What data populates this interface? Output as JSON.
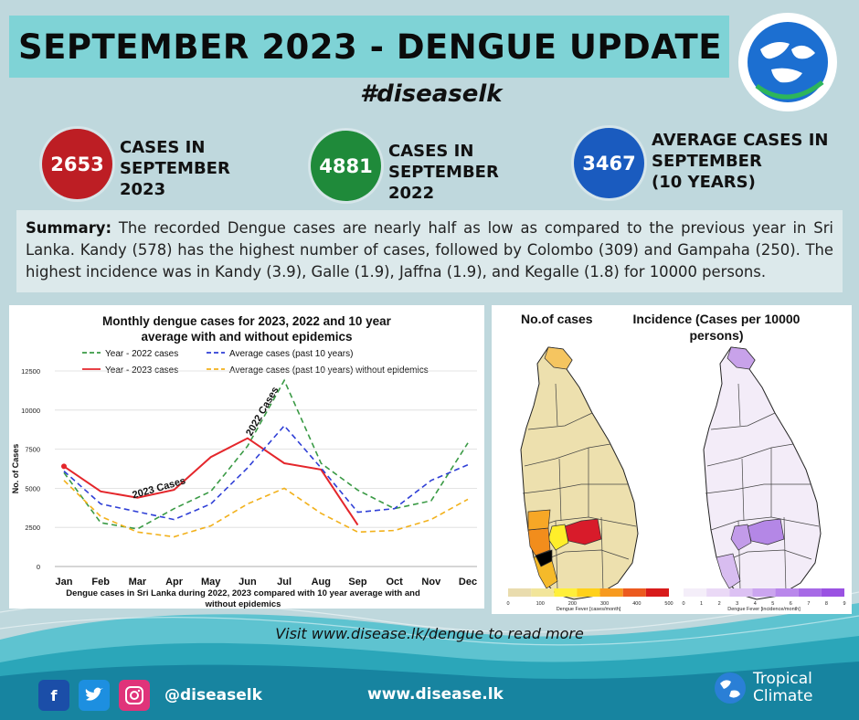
{
  "title": "SEPTEMBER 2023 - DENGUE UPDATE",
  "hashtag": "#diseaselk",
  "stats": [
    {
      "value": "2653",
      "label": "CASES IN\nSEPTEMBER\n2023",
      "color": "#bd1e24"
    },
    {
      "value": "4881",
      "label": "CASES IN\nSEPTEMBER\n2022",
      "color": "#1f8a3a"
    },
    {
      "value": "3467",
      "label": "AVERAGE CASES  IN\nSEPTEMBER\n(10 YEARS)",
      "color": "#1a5bbf"
    }
  ],
  "summary": {
    "lead": "Summary:",
    "text": "  The recorded Dengue cases are nearly half as low as compared to the previous year in Sri Lanka. Kandy (578) has the highest number of cases, followed by Colombo (309) and Gampaha (250). The highest incidence was in Kandy (3.9), Galle (1.9), Jaffna (1.9), and Kegalle (1.8) for 10000 persons."
  },
  "chart_data": [
    {
      "type": "line",
      "title": "Monthly dengue cases for 2023, 2022 and 10 year average with and without epidemics",
      "caption": "Dengue cases in Sri Lanka during 2022, 2023 compared with 10 year average with and without epidemics",
      "ylabel": "No. of Cases",
      "xlabel": "",
      "categories": [
        "Jan",
        "Feb",
        "Mar",
        "Apr",
        "May",
        "Jun",
        "Jul",
        "Aug",
        "Sep",
        "Oct",
        "Nov",
        "Dec"
      ],
      "yticks": [
        0,
        2500,
        5000,
        7500,
        10000,
        12500
      ],
      "ylim": [
        0,
        12500
      ],
      "grid": true,
      "legend": "top",
      "series": [
        {
          "name": "Year - 2022 cases",
          "color": "#3a9a45",
          "dash": "dashed",
          "values": [
            6000,
            2800,
            2400,
            3700,
            4800,
            7700,
            11900,
            6600,
            4881,
            3700,
            4200,
            7900
          ]
        },
        {
          "name": "Year - 2023 cases",
          "color": "#e4262b",
          "dash": "solid",
          "values": [
            6400,
            4800,
            4400,
            4900,
            7000,
            8200,
            6600,
            6200,
            2653,
            null,
            null,
            null
          ]
        },
        {
          "name": "Average cases (past 10 years)",
          "color": "#2f3fd6",
          "dash": "dashed",
          "values": [
            6100,
            4000,
            3500,
            3000,
            4000,
            6300,
            9000,
            6300,
            3467,
            3700,
            5500,
            6500
          ]
        },
        {
          "name": "Average cases (past 10 years) without epidemics",
          "color": "#f2b11b",
          "dash": "dashed",
          "values": [
            5500,
            3200,
            2200,
            1900,
            2600,
            4000,
            5000,
            3400,
            2200,
            2300,
            3000,
            4300
          ]
        }
      ],
      "annotations": [
        "2023 Cases",
        "2022 Cases"
      ]
    },
    {
      "type": "heatmap",
      "title": "No.of cases",
      "legend_label": "Dengue Fever [cases/month]",
      "legend_ticks": [
        "0",
        "100",
        "200",
        "300",
        "400",
        "500"
      ],
      "legend_colors": [
        "#e9dcae",
        "#f2e59a",
        "#ffef3a",
        "#ffd11a",
        "#f79a1f",
        "#ec5a1f",
        "#d81b1b"
      ]
    },
    {
      "type": "heatmap",
      "title": "Incidence (Cases per 10000 persons)",
      "legend_label": "Dengue Fever [incidence/month]",
      "legend_ticks": [
        "0",
        "1",
        "2",
        "3",
        "4",
        "5",
        "6",
        "7",
        "8",
        "9"
      ],
      "legend_colors": [
        "#f4eef9",
        "#ead9f6",
        "#dcc1f3",
        "#cba5ef",
        "#b987eb",
        "#a76ae6",
        "#9a52e2"
      ]
    }
  ],
  "footer": {
    "visit": "Visit www.disease.lk/dengue to read more",
    "handle": "@diseaselk",
    "site": "www.disease.lk",
    "brand_line1": "Tropical",
    "brand_line2": "Climate",
    "icons": [
      "facebook-icon",
      "twitter-icon",
      "instagram-icon"
    ]
  }
}
